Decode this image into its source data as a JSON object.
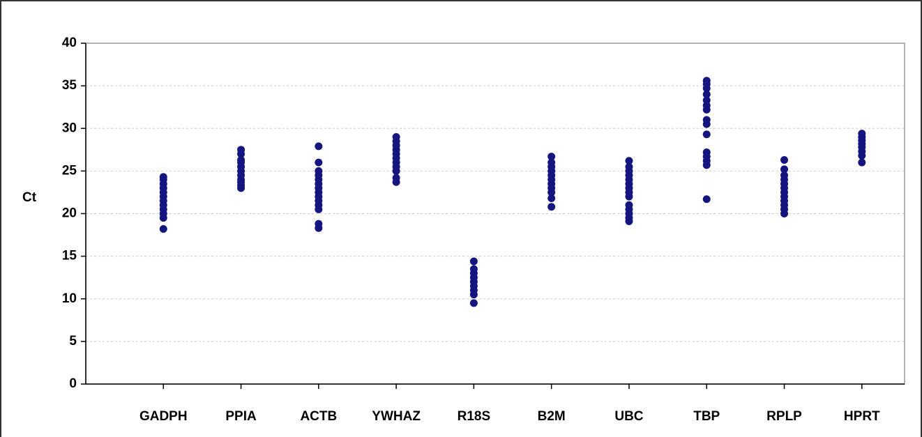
{
  "chart_data": {
    "type": "strip",
    "y_label": "Ct",
    "categories": [
      "GADPH",
      "PPIA",
      "ACTB",
      "YWHAZ",
      "R18S",
      "B2M",
      "UBC",
      "TBP",
      "RPLP",
      "HPRT"
    ],
    "values": [
      [
        18.2,
        19.5,
        20.0,
        20.5,
        21.0,
        21.5,
        22.0,
        22.5,
        23.0,
        23.5,
        24.0,
        24.3
      ],
      [
        23.0,
        23.3,
        23.7,
        24.0,
        24.5,
        25.0,
        25.5,
        26.0,
        26.3,
        27.0,
        27.5
      ],
      [
        18.3,
        18.8,
        20.5,
        21.0,
        21.5,
        22.0,
        22.5,
        23.0,
        23.5,
        24.0,
        24.5,
        25.0,
        26.0,
        27.9
      ],
      [
        23.7,
        24.2,
        25.0,
        25.5,
        26.0,
        26.5,
        27.0,
        27.5,
        28.0,
        28.5,
        29.0
      ],
      [
        9.5,
        10.5,
        11.0,
        11.5,
        12.0,
        12.5,
        13.0,
        13.5,
        14.4
      ],
      [
        20.8,
        21.8,
        22.5,
        23.0,
        23.5,
        24.0,
        24.5,
        25.0,
        25.5,
        26.0,
        26.7
      ],
      [
        19.1,
        19.5,
        20.0,
        20.5,
        21.0,
        22.0,
        22.5,
        23.0,
        23.5,
        24.0,
        24.5,
        25.0,
        25.5,
        26.2
      ],
      [
        21.7,
        25.7,
        26.2,
        26.7,
        27.2,
        29.3,
        30.5,
        31.0,
        32.2,
        32.7,
        33.3,
        34.0,
        34.7,
        35.2,
        35.6
      ],
      [
        20.0,
        20.5,
        21.0,
        21.5,
        22.0,
        22.5,
        23.0,
        23.5,
        24.0,
        24.5,
        25.2,
        26.3
      ],
      [
        26.0,
        26.8,
        27.3,
        27.8,
        28.2,
        28.6,
        29.0,
        29.4
      ]
    ],
    "color": "#15157f",
    "ylim": [
      0,
      40
    ],
    "yticks": [
      0,
      5,
      10,
      15,
      20,
      25,
      30,
      35,
      40
    ],
    "grid": true
  }
}
